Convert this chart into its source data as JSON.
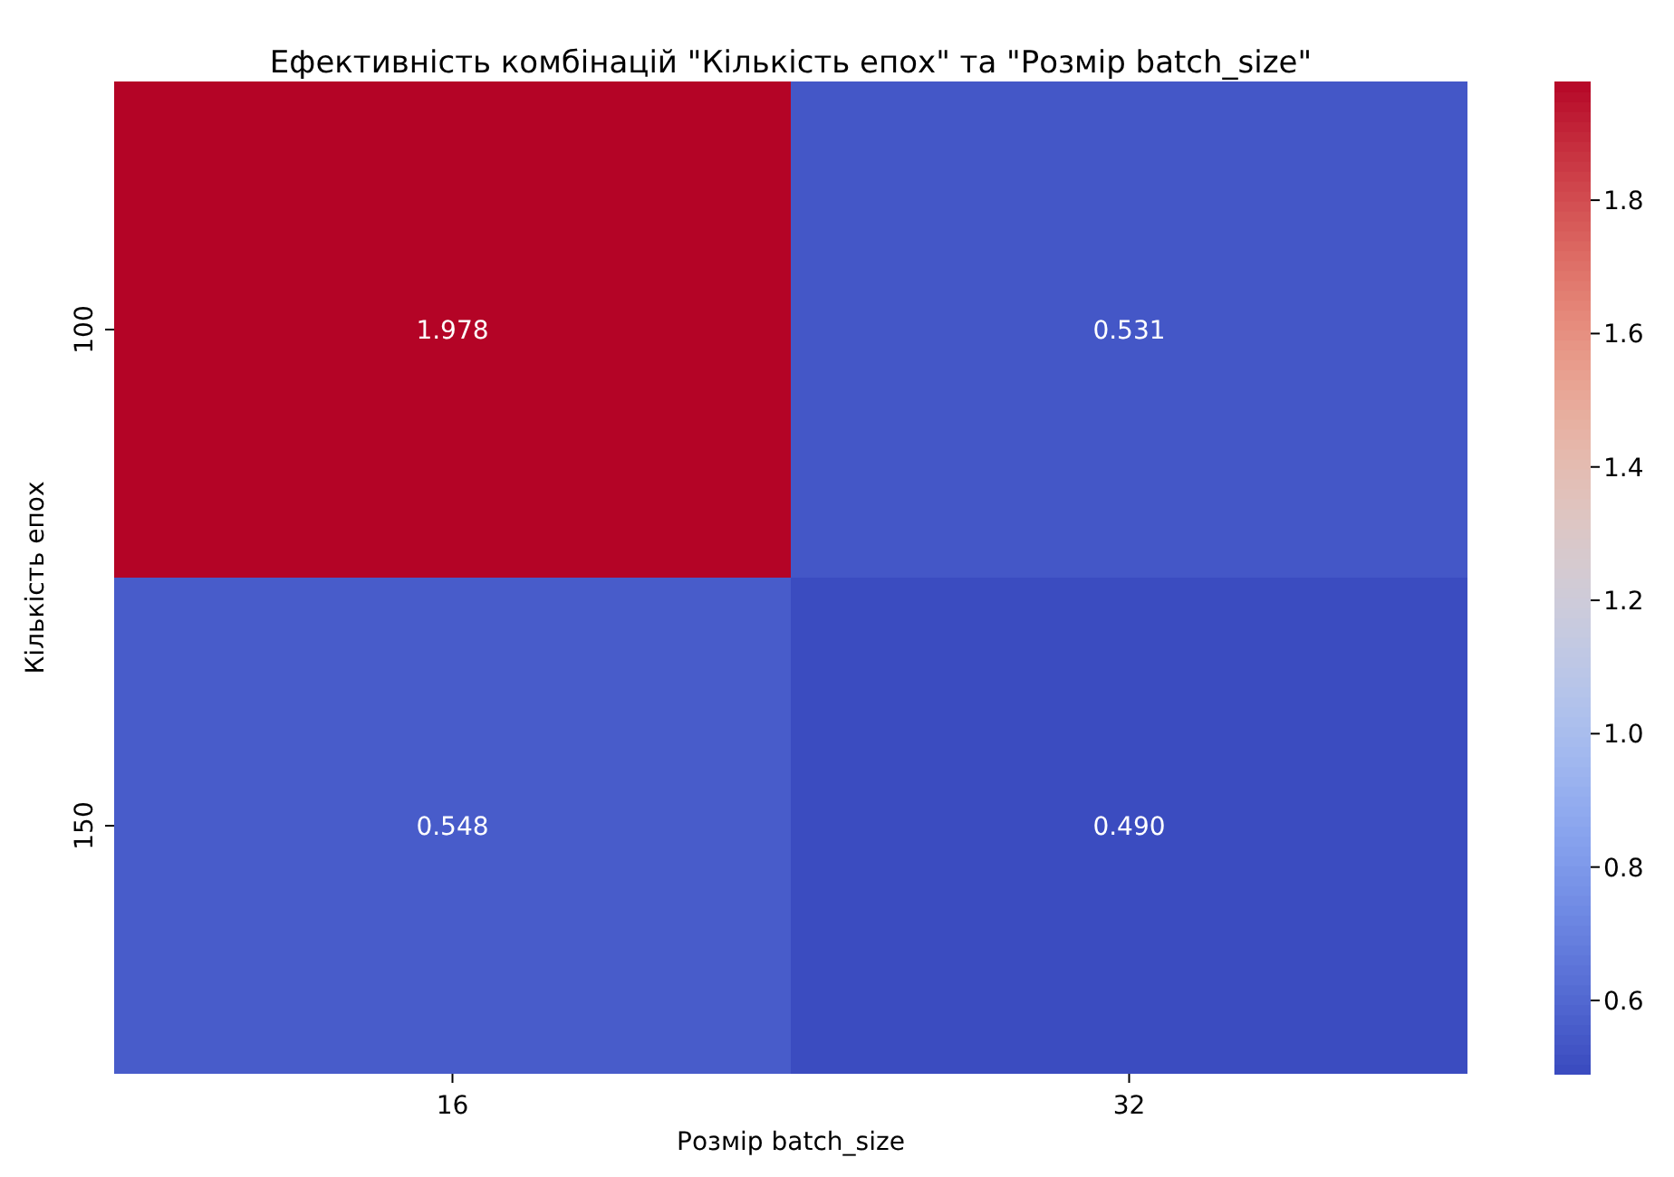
{
  "chart_data": {
    "type": "heatmap",
    "title": "Ефективність комбінацій \"Кількість епох\" та \"Розмір batch_size\"",
    "xlabel": "Розмір batch_size",
    "ylabel": "Кількість епох",
    "categories": [
      "16",
      "32"
    ],
    "y_categories": [
      "100",
      "150"
    ],
    "cells": [
      [
        1.978,
        0.531
      ],
      [
        0.548,
        0.49
      ]
    ],
    "cell_labels": [
      [
        "1.978",
        "0.531"
      ],
      [
        "0.548",
        "0.490"
      ]
    ],
    "clim": [
      0.49,
      1.978
    ],
    "cticks": [
      0.6,
      0.8,
      {
        "value": 1,
        "label": "1.0"
      },
      1.2,
      1.4,
      1.6,
      1.8
    ]
  }
}
